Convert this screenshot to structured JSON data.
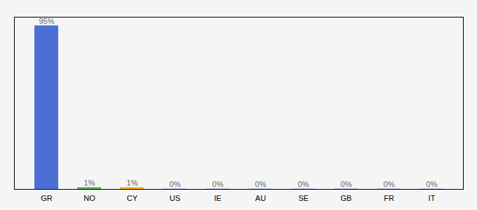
{
  "chart_data": {
    "type": "bar",
    "categories": [
      "GR",
      "NO",
      "CY",
      "US",
      "IE",
      "AU",
      "SE",
      "GB",
      "FR",
      "IT"
    ],
    "values": [
      95,
      1,
      1,
      0.15,
      0.15,
      0.15,
      0.15,
      0.15,
      0.15,
      0.15
    ],
    "value_labels": [
      "95%",
      "1%",
      "1%",
      "0%",
      "0%",
      "0%",
      "0%",
      "0%",
      "0%",
      "0%"
    ],
    "colors": [
      "#4B6FD4",
      "#4CAF50",
      "#FFA500",
      "#4B6FD4",
      "#4B6FD4",
      "#4B6FD4",
      "#4B6FD4",
      "#4B6FD4",
      "#4B6FD4",
      "#4B6FD4"
    ],
    "ylim": [
      0,
      100
    ],
    "data_labels": true,
    "tick_labels": "x",
    "grid": false
  }
}
